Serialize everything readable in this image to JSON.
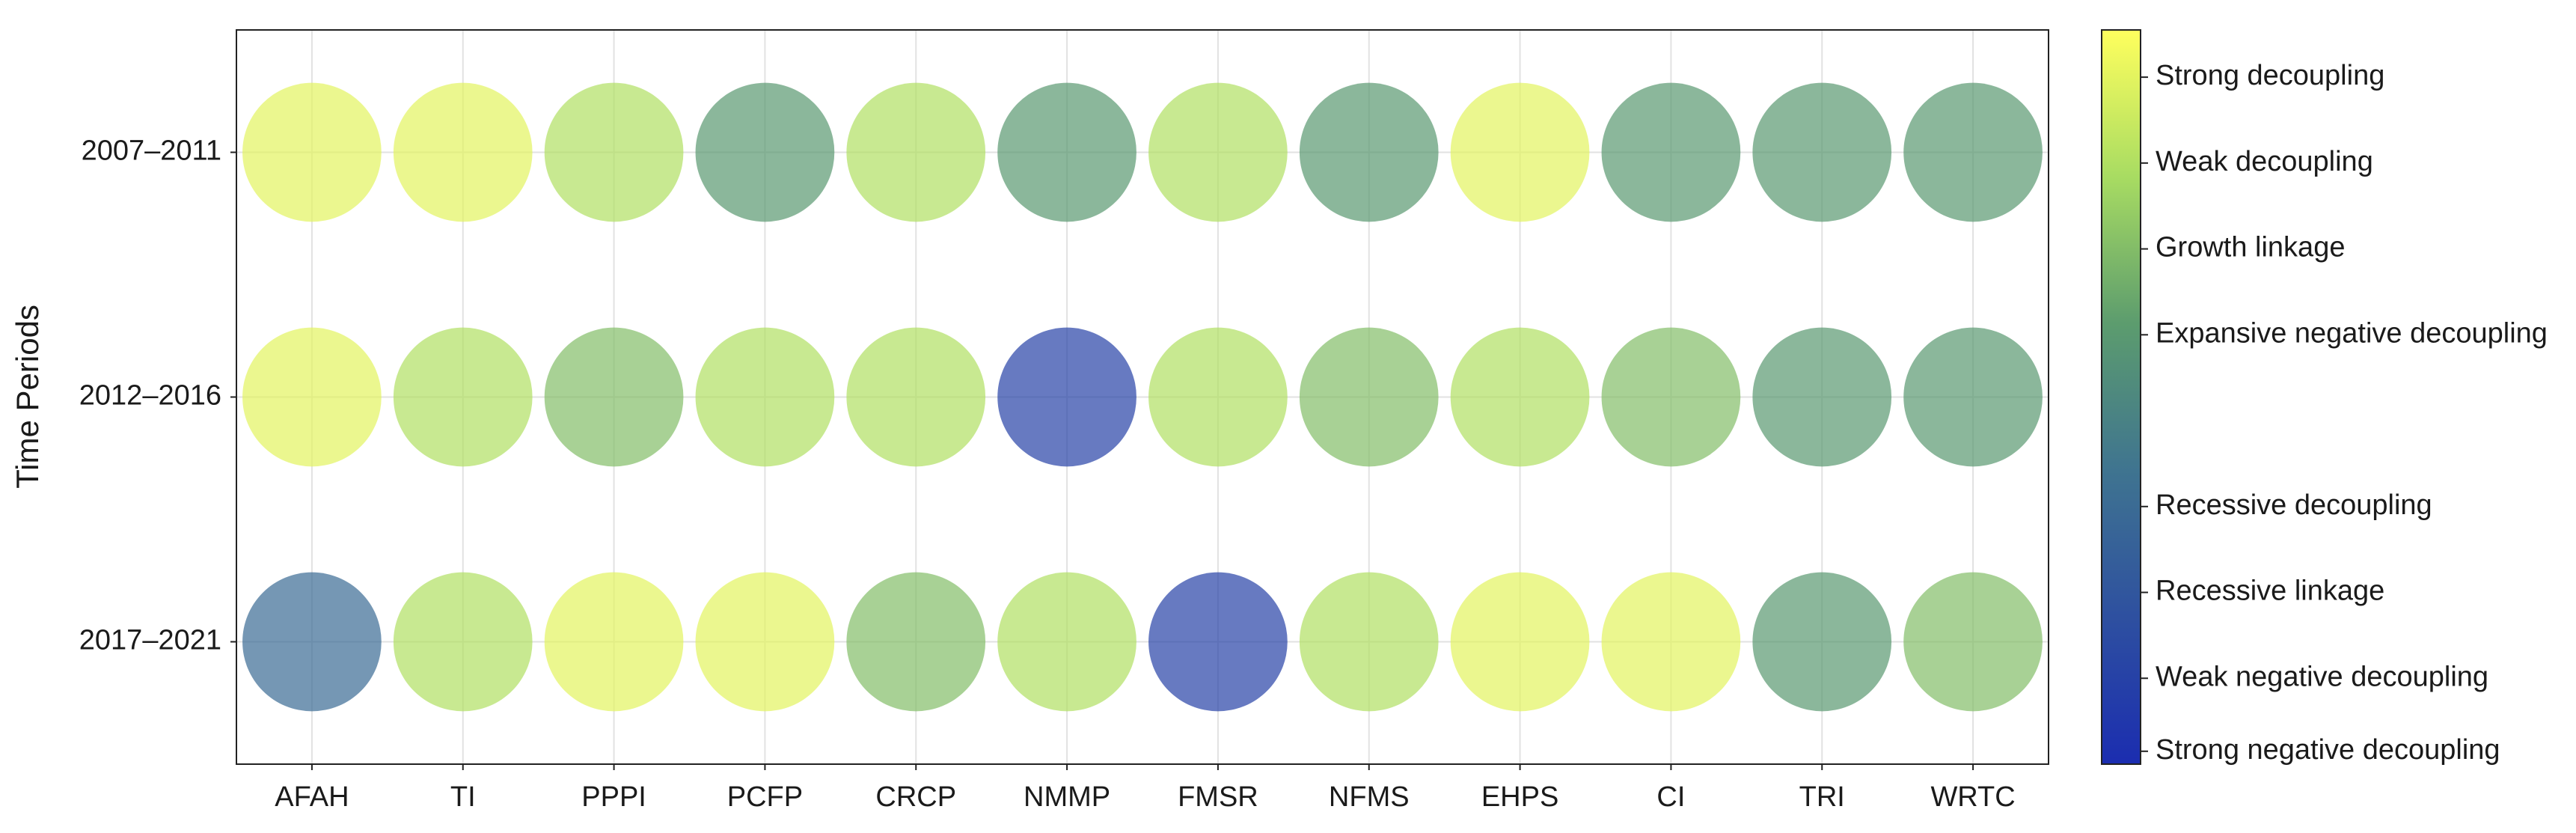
{
  "chart_data": {
    "type": "bubble-matrix",
    "y_label": "Time Periods",
    "x_categories": [
      "AFAH",
      "TI",
      "PPPI",
      "PCFP",
      "CRCP",
      "NMMP",
      "FMSR",
      "NFMS",
      "EHPS",
      "CI",
      "TRI",
      "WRTC"
    ],
    "y_categories": [
      "2007–2011",
      "2012–2016",
      "2017–2021"
    ],
    "values": [
      [
        8,
        8,
        7,
        5,
        7,
        5,
        7,
        5,
        8,
        5,
        5,
        5
      ],
      [
        8,
        7,
        6,
        7,
        7,
        1,
        7,
        6,
        7,
        6,
        5,
        5
      ],
      [
        3,
        7,
        8,
        8,
        6,
        7,
        1,
        7,
        8,
        8,
        5,
        6
      ]
    ],
    "colormap": [
      "#1b2db0",
      "#2e50a0",
      "#3f7490",
      "#5c9c6e",
      "#a8dc62",
      "#ffff5e"
    ],
    "alpha": 0.7,
    "grid": true,
    "colorbar": {
      "lim": [
        0,
        8.55
      ],
      "ticks": [
        {
          "value": 8,
          "label": "Strong decoupling"
        },
        {
          "value": 7,
          "label": "Weak decoupling"
        },
        {
          "value": 6,
          "label": "Growth linkage"
        },
        {
          "value": 5,
          "label": "Expansive negative decoupling"
        },
        {
          "value": 3,
          "label": "Recessive decoupling"
        },
        {
          "value": 2,
          "label": "Recessive linkage"
        },
        {
          "value": 1,
          "label": "Weak negative decoupling"
        },
        {
          "value": 0.15,
          "label": "Strong negative decoupling"
        }
      ]
    }
  }
}
